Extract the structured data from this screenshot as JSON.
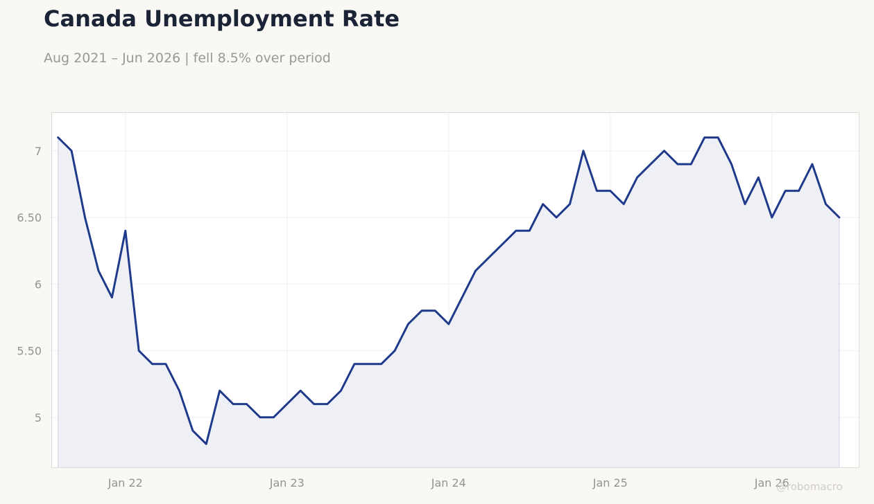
{
  "header": {
    "title": "Canada Unemployment Rate",
    "subtitle": "Aug 2021 – Jun 2026 | fell 8.5% over period"
  },
  "watermark": "@robomacro",
  "colors": {
    "line": "#1f3a8a",
    "area": "#edeef5",
    "grid": "#efeff2",
    "frame": "#dcdcd6",
    "tick_text": "#94948e",
    "plot_background": "#ffffff",
    "page_background": "#f9f8f5"
  },
  "chart_data": {
    "type": "area",
    "title": "Canada Unemployment Rate",
    "subtitle": "Aug 2021 – Jun 2026 | fell 8.5% over period",
    "xlabel": "",
    "ylabel": "",
    "x_start": "2021-08",
    "x_end": "2026-06",
    "x_ticks": [
      {
        "date": "2022-01",
        "label": "Jan 22"
      },
      {
        "date": "2023-01",
        "label": "Jan 23"
      },
      {
        "date": "2024-01",
        "label": "Jan 24"
      },
      {
        "date": "2025-01",
        "label": "Jan 25"
      },
      {
        "date": "2026-01",
        "label": "Jan 26"
      }
    ],
    "y_ticks": [
      {
        "value": 5,
        "label": "5"
      },
      {
        "value": 5.5,
        "label": "5.50"
      },
      {
        "value": 6,
        "label": "6"
      },
      {
        "value": 6.5,
        "label": "6.50"
      },
      {
        "value": 7,
        "label": "7"
      }
    ],
    "ylim": [
      4.62,
      7.29
    ],
    "grid": true,
    "series": [
      {
        "x": [
          "2021-08",
          "2021-09",
          "2021-10",
          "2021-11",
          "2021-12",
          "2022-01",
          "2022-02",
          "2022-03",
          "2022-04",
          "2022-05",
          "2022-06",
          "2022-07",
          "2022-08",
          "2022-09",
          "2022-10",
          "2022-11",
          "2022-12",
          "2023-01",
          "2023-02",
          "2023-03",
          "2023-04",
          "2023-05",
          "2023-06",
          "2023-07",
          "2023-08",
          "2023-09",
          "2023-10",
          "2023-11",
          "2023-12",
          "2024-01",
          "2024-02",
          "2024-03",
          "2024-04",
          "2024-05",
          "2024-06",
          "2024-07",
          "2024-08",
          "2024-09",
          "2024-10",
          "2024-11",
          "2024-12",
          "2025-01",
          "2025-02",
          "2025-03",
          "2025-04",
          "2025-05",
          "2025-06",
          "2025-07",
          "2025-08",
          "2025-09",
          "2025-10",
          "2025-11",
          "2025-12",
          "2026-01",
          "2026-02",
          "2026-03",
          "2026-04",
          "2026-05",
          "2026-06"
        ],
        "values": [
          7.1,
          7.0,
          6.5,
          6.1,
          5.9,
          6.4,
          5.5,
          5.4,
          5.4,
          5.2,
          4.9,
          4.8,
          5.2,
          5.1,
          5.1,
          5.0,
          5.0,
          5.1,
          5.2,
          5.1,
          5.1,
          5.2,
          5.4,
          5.4,
          5.4,
          5.5,
          5.7,
          5.8,
          5.8,
          5.7,
          5.9,
          6.1,
          6.2,
          6.3,
          6.4,
          6.4,
          6.6,
          6.5,
          6.6,
          7.0,
          6.7,
          6.7,
          6.6,
          6.8,
          6.9,
          7.0,
          6.9,
          6.9,
          7.1,
          7.1,
          6.9,
          6.6,
          6.8,
          6.5,
          6.7,
          6.7,
          6.9,
          6.6,
          6.5
        ]
      }
    ]
  }
}
